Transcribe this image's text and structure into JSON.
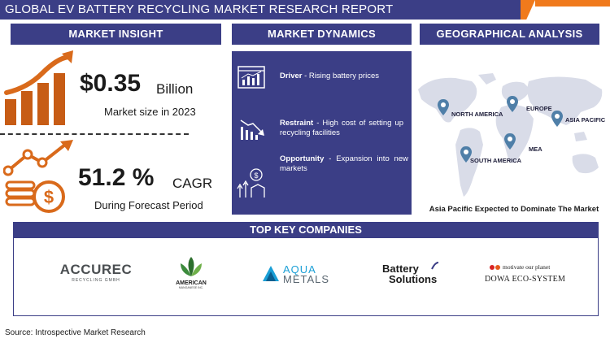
{
  "title": "GLOBAL EV BATTERY RECYCLING MARKET RESEARCH REPORT",
  "sections": {
    "market_insight": "MARKET INSIGHT",
    "market_dynamics": "MARKET DYNAMICS",
    "geographical_analysis": "GEOGRAPHICAL ANALYSIS",
    "top_key_companies": "TOP KEY COMPANIES"
  },
  "market_insight": {
    "market_size_value": "$0.35",
    "market_size_unit": "Billion",
    "market_size_caption": "Market size in 2023",
    "cagr_value": "51.2 %",
    "cagr_unit": "CAGR",
    "cagr_caption": "During Forecast Period"
  },
  "market_dynamics": {
    "driver_label": "Driver",
    "driver_sep": " - ",
    "driver_text": "Rising battery prices",
    "restraint_label": "Restraint",
    "restraint_sep": " - ",
    "restraint_text": "High cost of setting up recycling facilities",
    "opportunity_label": "Opportunity",
    "opportunity_sep": " - ",
    "opportunity_text": "Expansion into new markets"
  },
  "geography": {
    "regions": {
      "north_america": "NORTH AMERICA",
      "europe": "EUROPE",
      "asia_pacific": "ASIA PACIFIC",
      "south_america": "SOUTH AMERICA",
      "mea": "MEA"
    },
    "caption": "Asia Pacific Expected to Dominate The Market"
  },
  "companies": {
    "accurec": "ACCUREC",
    "accurec_sub": "RECYCLING GMBH",
    "american": "AMERICAN",
    "american_sub": "MANGANESE INC.",
    "aqua_1": "AQUA",
    "aqua_2": "METALS",
    "battery_1": "Battery",
    "battery_2": "Solutions",
    "dowa_tag": "motivate our planet",
    "dowa": "DOWA ECO-SYSTEM"
  },
  "source": "Source: Introspective Market Research",
  "colors": {
    "navy": "#3b3e86",
    "orange": "#f07a1c",
    "map_gray": "#d9dce8",
    "pin_blue": "#4f7fa8"
  }
}
